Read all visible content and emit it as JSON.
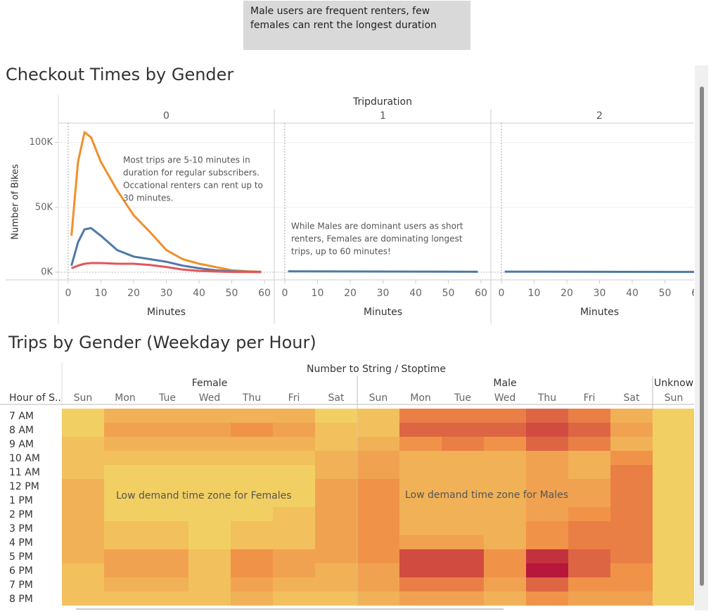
{
  "caption": "Male users are frequent renters, few females can rent the longest duration",
  "chart_data": [
    {
      "type": "line",
      "title": "Checkout Times by Gender",
      "facet_title": "Tripduration",
      "x_label": "Minutes",
      "y_label": "Number of Bikes",
      "xlim": [
        -3,
        63
      ],
      "xticks": [
        0,
        10,
        20,
        30,
        40,
        50,
        60
      ],
      "ylim": [
        -6000,
        115000
      ],
      "yticks": [
        {
          "value": 0,
          "label": "0K"
        },
        {
          "value": 50000,
          "label": "50K"
        },
        {
          "value": 100000,
          "label": "100K"
        }
      ],
      "grid": true,
      "facets": [
        {
          "label": "0",
          "x": [
            1,
            3,
            5,
            7,
            10,
            15,
            20,
            25,
            30,
            35,
            40,
            45,
            50,
            55,
            59
          ],
          "series": [
            {
              "color": "#f28e2b",
              "values": [
                28000,
                85000,
                108000,
                104000,
                85000,
                63000,
                44000,
                31000,
                17000,
                10000,
                6500,
                4000,
                1500,
                700,
                300
              ]
            },
            {
              "color": "#4e79a7",
              "values": [
                5000,
                23000,
                33000,
                34000,
                28000,
                17000,
                12000,
                10000,
                8000,
                5000,
                3000,
                1500,
                600,
                300,
                200
              ]
            },
            {
              "color": "#e15759",
              "values": [
                3000,
                5000,
                6500,
                7000,
                7000,
                6500,
                6500,
                5500,
                4000,
                2000,
                1000,
                500,
                200,
                100,
                50
              ]
            }
          ],
          "annotation": [
            "Most trips are 5-10 minutes in",
            "duration for regular subscribers.",
            "Occational renters can rent up to",
            "30 minutes."
          ]
        },
        {
          "label": "1",
          "x": [
            1,
            59
          ],
          "series": [
            {
              "color": "#4e79a7",
              "values": [
                600,
                300
              ]
            }
          ],
          "annotation": [
            "While Males are dominant users as short",
            "renters, Females are dominating longest",
            "trips, up to 60 minutes!"
          ]
        },
        {
          "label": "2",
          "x": [
            1,
            59
          ],
          "series": [
            {
              "color": "#4e79a7",
              "values": [
                400,
                200
              ]
            }
          ]
        }
      ]
    },
    {
      "type": "heatmap",
      "title": "Trips by Gender (Weekday per Hour)",
      "column_title": "Number to String / Stoptime",
      "row_title": "Hour of S..",
      "groups": [
        {
          "name": "Female",
          "categories": [
            "Sun",
            "Mon",
            "Tue",
            "Wed",
            "Thu",
            "Fri",
            "Sat"
          ]
        },
        {
          "name": "Male",
          "categories": [
            "Sun",
            "Mon",
            "Tue",
            "Wed",
            "Thu",
            "Fri",
            "Sat"
          ]
        },
        {
          "name": "Unknown",
          "categories": [
            "Sun"
          ]
        }
      ],
      "rows": [
        "7 AM",
        "8 AM",
        "9 AM",
        "10 AM",
        "11 AM",
        "12 PM",
        "1 PM",
        "2 PM",
        "3 PM",
        "4 PM",
        "5 PM",
        "6 PM",
        "7 PM",
        "8 PM"
      ],
      "values": [
        [
          1,
          3,
          3,
          3,
          3,
          3,
          1,
          2,
          6,
          6,
          6,
          7,
          6,
          3,
          1
        ],
        [
          1,
          4,
          4,
          4,
          5,
          4,
          2,
          2,
          7,
          7,
          7,
          8,
          7,
          4,
          1
        ],
        [
          2,
          3,
          3,
          3,
          3,
          3,
          2,
          3,
          5,
          6,
          5,
          7,
          6,
          3,
          1
        ],
        [
          2,
          2,
          2,
          2,
          2,
          2,
          3,
          4,
          3,
          3,
          3,
          4,
          3,
          5,
          1
        ],
        [
          2,
          1,
          1,
          1,
          1,
          1,
          3,
          4,
          3,
          3,
          3,
          4,
          3,
          6,
          1
        ],
        [
          3,
          1,
          1,
          1,
          1,
          1,
          4,
          5,
          3,
          3,
          3,
          4,
          4,
          6,
          1
        ],
        [
          3,
          1,
          1,
          1,
          1,
          1,
          4,
          5,
          3,
          3,
          3,
          4,
          4,
          6,
          1
        ],
        [
          3,
          1,
          1,
          1,
          1,
          2,
          4,
          5,
          3,
          3,
          3,
          4,
          5,
          6,
          1
        ],
        [
          3,
          2,
          2,
          1,
          2,
          2,
          4,
          5,
          3,
          3,
          3,
          5,
          6,
          6,
          1
        ],
        [
          3,
          2,
          2,
          1,
          2,
          2,
          4,
          5,
          4,
          4,
          3,
          5,
          6,
          6,
          1
        ],
        [
          3,
          4,
          4,
          2,
          5,
          4,
          4,
          5,
          8,
          8,
          5,
          9,
          7,
          6,
          1
        ],
        [
          2,
          4,
          4,
          2,
          5,
          4,
          3,
          4,
          8,
          8,
          5,
          10,
          7,
          5,
          1
        ],
        [
          2,
          3,
          3,
          2,
          4,
          3,
          3,
          4,
          6,
          6,
          4,
          7,
          5,
          5,
          1
        ],
        [
          2,
          2,
          2,
          2,
          3,
          2,
          2,
          3,
          4,
          4,
          3,
          5,
          4,
          4,
          1
        ]
      ],
      "zlim": [
        1,
        10
      ],
      "color_scale": [
        "#f2cf63",
        "#f08c46",
        "#b8173c"
      ],
      "annotations": [
        "Low demand time zone for Females",
        "Low demand time zone for Males"
      ]
    }
  ]
}
